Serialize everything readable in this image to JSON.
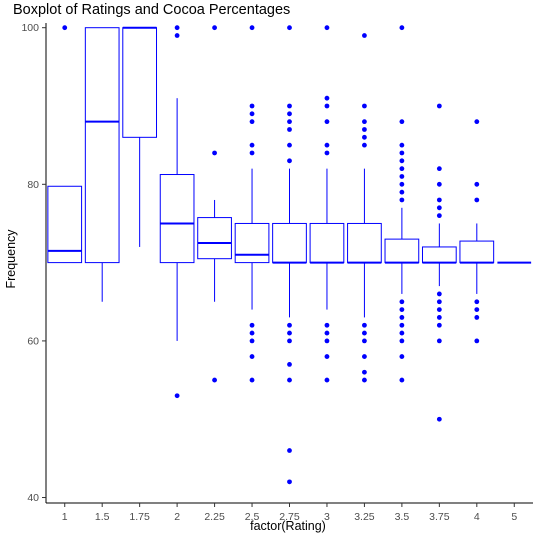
{
  "chart_data": {
    "type": "boxplot",
    "title": "Boxplot of Ratings and Cocoa Percentages",
    "xlabel": "factor(Rating)",
    "ylabel": "Frequency",
    "categories": [
      "1",
      "1.5",
      "1.75",
      "2",
      "2.25",
      "2.5",
      "2.75",
      "3",
      "3.25",
      "3.5",
      "3.75",
      "4",
      "5"
    ],
    "ylim": [
      39.3,
      100.6
    ],
    "y_ticks": [
      40,
      60,
      80,
      100
    ],
    "grid": false,
    "color": "#0000ff",
    "boxes": [
      {
        "category": "1",
        "lower_whisker": 70,
        "q1": 70,
        "median": 71.5,
        "q3": 79.75,
        "upper_whisker": 79.75,
        "outliers": [
          100
        ]
      },
      {
        "category": "1.5",
        "lower_whisker": 65,
        "q1": 70,
        "median": 88,
        "q3": 100,
        "upper_whisker": 100,
        "outliers": []
      },
      {
        "category": "1.75",
        "lower_whisker": 72,
        "q1": 86,
        "median": 100,
        "q3": 100,
        "upper_whisker": 100,
        "outliers": []
      },
      {
        "category": "2",
        "lower_whisker": 60,
        "q1": 70,
        "median": 75,
        "q3": 81.25,
        "upper_whisker": 91,
        "outliers": [
          53,
          99,
          100
        ]
      },
      {
        "category": "2.25",
        "lower_whisker": 65,
        "q1": 70.5,
        "median": 72.5,
        "q3": 75.75,
        "upper_whisker": 78,
        "outliers": [
          55,
          84,
          100
        ]
      },
      {
        "category": "2.5",
        "lower_whisker": 64,
        "q1": 70,
        "median": 71,
        "q3": 75,
        "upper_whisker": 82,
        "outliers": [
          55,
          58,
          60,
          61,
          62,
          84,
          85,
          88,
          89,
          90,
          100
        ]
      },
      {
        "category": "2.75",
        "lower_whisker": 63,
        "q1": 70,
        "median": 70,
        "q3": 75,
        "upper_whisker": 82,
        "outliers": [
          42,
          46,
          55,
          57,
          60,
          61,
          62,
          83,
          85,
          87,
          88,
          89,
          90,
          100
        ]
      },
      {
        "category": "3",
        "lower_whisker": 64,
        "q1": 70,
        "median": 70,
        "q3": 75,
        "upper_whisker": 82,
        "outliers": [
          55,
          58,
          60,
          61,
          62,
          84,
          85,
          88,
          90,
          91,
          100
        ]
      },
      {
        "category": "3.25",
        "lower_whisker": 63,
        "q1": 70,
        "median": 70,
        "q3": 75,
        "upper_whisker": 82,
        "outliers": [
          55,
          56,
          58,
          60,
          61,
          62,
          85,
          86,
          87,
          88,
          90,
          99
        ]
      },
      {
        "category": "3.5",
        "lower_whisker": 66,
        "q1": 70,
        "median": 70,
        "q3": 73,
        "upper_whisker": 77,
        "outliers": [
          55,
          58,
          60,
          61,
          62,
          63,
          64,
          65,
          78,
          79,
          80,
          81,
          82,
          83,
          84,
          85,
          88,
          100
        ]
      },
      {
        "category": "3.75",
        "lower_whisker": 67,
        "q1": 70,
        "median": 70,
        "q3": 72,
        "upper_whisker": 75,
        "outliers": [
          50,
          60,
          62,
          63,
          64,
          65,
          66,
          76,
          77,
          78,
          80,
          82,
          90
        ]
      },
      {
        "category": "4",
        "lower_whisker": 66,
        "q1": 70,
        "median": 70,
        "q3": 72.75,
        "upper_whisker": 75,
        "outliers": [
          60,
          63,
          64,
          65,
          78,
          80,
          88
        ]
      },
      {
        "category": "5",
        "lower_whisker": 70,
        "q1": 70,
        "median": 70,
        "q3": 70,
        "upper_whisker": 70,
        "outliers": []
      }
    ]
  }
}
